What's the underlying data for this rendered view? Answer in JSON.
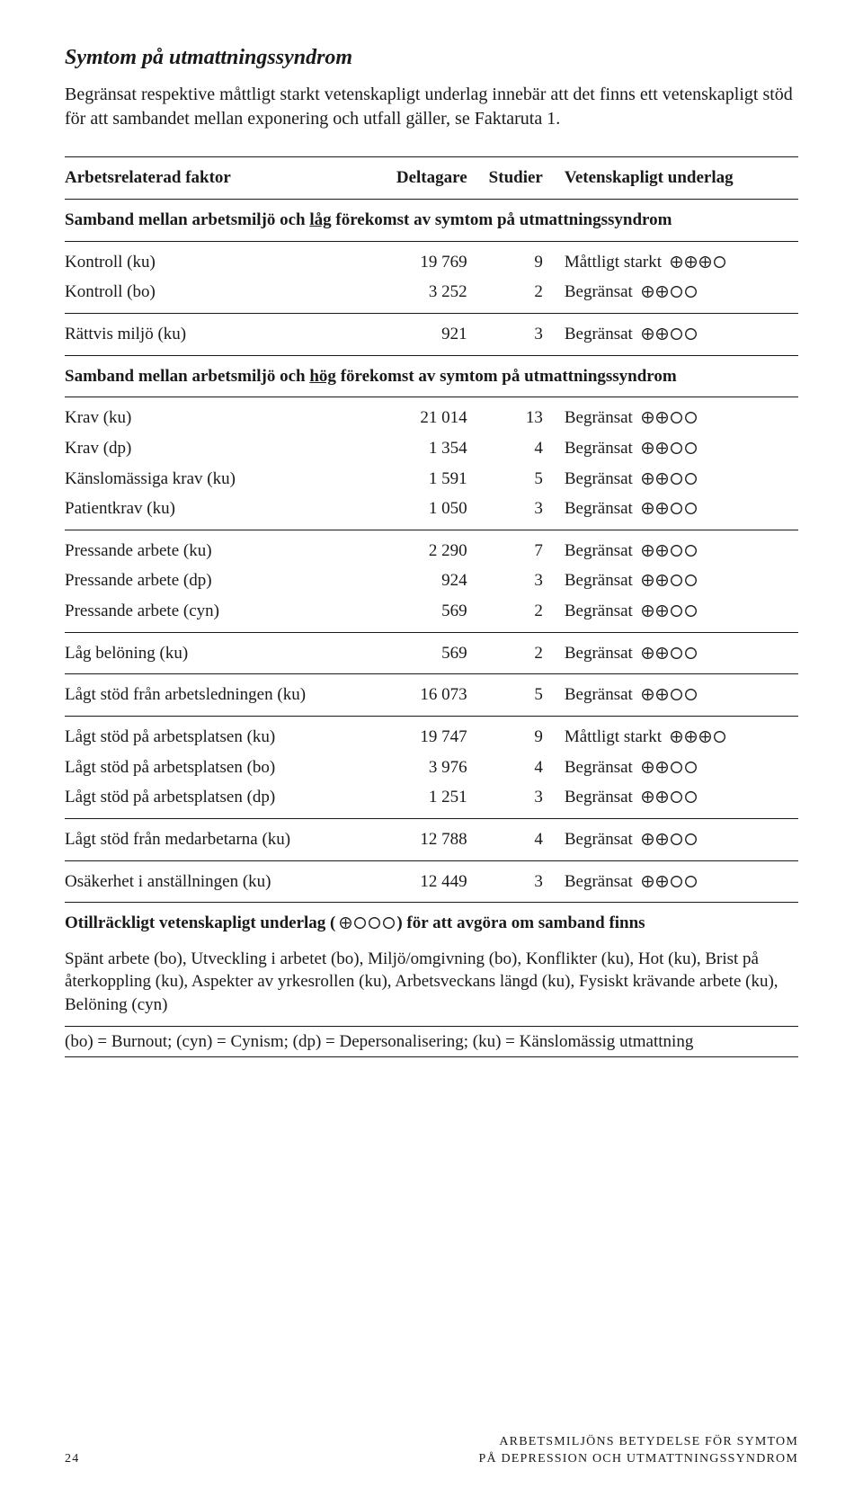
{
  "title": "Symtom på utmattningssyndrom",
  "intro": "Begränsat respektive måttligt starkt vetenskapligt underlag innebär att det finns ett vetenskapligt stöd för att sambandet mellan exponering och utfall gäller, se Faktaruta 1.",
  "columns": {
    "factor": "Arbetsrelaterad faktor",
    "deltagare": "Deltagare",
    "studier": "Studier",
    "underlag": "Vetenskapligt underlag"
  },
  "sub1_a": "Samband mellan arbetsmiljö och ",
  "sub1_u": "låg",
  "sub1_b": " förekomst av symtom på utmattningssyndrom",
  "sub2_a": "Samband mellan arbetsmiljö och ",
  "sub2_u": "hög",
  "sub2_b": " förekomst av symtom på utmattningssyndrom",
  "groups": [
    [
      {
        "f": "Kontroll (ku)",
        "d": "19 769",
        "s": "9",
        "r": "Måttligt starkt",
        "lvl": 3
      },
      {
        "f": "Kontroll (bo)",
        "d": "3 252",
        "s": "2",
        "r": "Begränsat",
        "lvl": 2
      }
    ],
    [
      {
        "f": "Rättvis miljö (ku)",
        "d": "921",
        "s": "3",
        "r": "Begränsat",
        "lvl": 2
      }
    ]
  ],
  "groups2": [
    [
      {
        "f": "Krav (ku)",
        "d": "21 014",
        "s": "13",
        "r": "Begränsat",
        "lvl": 2
      },
      {
        "f": "Krav (dp)",
        "d": "1 354",
        "s": "4",
        "r": "Begränsat",
        "lvl": 2
      },
      {
        "f": "Känslomässiga krav (ku)",
        "d": "1 591",
        "s": "5",
        "r": "Begränsat",
        "lvl": 2
      },
      {
        "f": "Patientkrav (ku)",
        "d": "1 050",
        "s": "3",
        "r": "Begränsat",
        "lvl": 2
      }
    ],
    [
      {
        "f": "Pressande arbete (ku)",
        "d": "2 290",
        "s": "7",
        "r": "Begränsat",
        "lvl": 2
      },
      {
        "f": "Pressande arbete (dp)",
        "d": "924",
        "s": "3",
        "r": "Begränsat",
        "lvl": 2
      },
      {
        "f": "Pressande arbete (cyn)",
        "d": "569",
        "s": "2",
        "r": "Begränsat",
        "lvl": 2
      }
    ],
    [
      {
        "f": "Låg belöning (ku)",
        "d": "569",
        "s": "2",
        "r": "Begränsat",
        "lvl": 2
      }
    ],
    [
      {
        "f": "Lågt stöd från arbetsledningen (ku)",
        "d": "16 073",
        "s": "5",
        "r": "Begränsat",
        "lvl": 2
      }
    ],
    [
      {
        "f": "Lågt stöd på arbetsplatsen (ku)",
        "d": "19 747",
        "s": "9",
        "r": "Måttligt starkt",
        "lvl": 3
      },
      {
        "f": "Lågt stöd på arbetsplatsen (bo)",
        "d": "3 976",
        "s": "4",
        "r": "Begränsat",
        "lvl": 2
      },
      {
        "f": "Lågt stöd på arbetsplatsen (dp)",
        "d": "1 251",
        "s": "3",
        "r": "Begränsat",
        "lvl": 2
      }
    ],
    [
      {
        "f": "Lågt stöd från medarbetarna (ku)",
        "d": "12 788",
        "s": "4",
        "r": "Begränsat",
        "lvl": 2
      }
    ],
    [
      {
        "f": "Osäkerhet i anställningen (ku)",
        "d": "12 449",
        "s": "3",
        "r": "Begränsat",
        "lvl": 2
      }
    ]
  ],
  "insuff_a": "Otillräckligt vetenskapligt underlag (",
  "insuff_b": ") för att avgöra om samband finns",
  "insuff_lvl": 1,
  "insuff_list": "Spänt arbete (bo), Utveckling i arbetet (bo), Miljö/omgivning (bo), Konflikter (ku), Hot (ku), Brist på återkoppling (ku), Aspekter av yrkesrollen (ku), Arbetsveckans längd (ku), Fysiskt krävande arbete (ku), Belöning (cyn)",
  "legend": "(bo) = Burnout; (cyn) = Cynism; (dp) = Depersonalisering; (ku) = Känslomässig utmattning",
  "footer": {
    "page": "24",
    "line1": "ARBETSMILJÖNS BETYDELSE FÖR SYMTOM",
    "line2": "PÅ DEPRESSION OCH UTMATTNINGSSYNDROM"
  },
  "style": {
    "circle_size": 15,
    "circle_stroke": "#1a1a1a",
    "circle_stroke_w": 1.4
  }
}
